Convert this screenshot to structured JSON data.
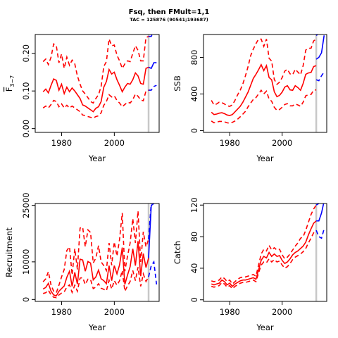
{
  "figure": {
    "title": "Fsq, then FMult=1,1",
    "subtitle": "TAC = 125876 (90541;193687)"
  },
  "colors": {
    "historic": "#ff0000",
    "projection": "#0000ff",
    "divider": "#c8c8c8"
  },
  "chart_data": [
    {
      "type": "line",
      "id": "fbar",
      "ylabel_main": "F",
      "ylabel_sub": "3−7",
      "xlabel": "Year",
      "xlim": [
        1970,
        2017
      ],
      "ylim": [
        -0.01,
        0.25
      ],
      "xticks": [
        "1980",
        "2000"
      ],
      "xtick_values": [
        1980,
        2000
      ],
      "yticks": [
        "0.00",
        "0.10",
        "0.20"
      ],
      "ytick_values": [
        0.0,
        0.1,
        0.2
      ],
      "divider_year": 2013,
      "x": [
        1973,
        1974,
        1975,
        1976,
        1977,
        1978,
        1979,
        1980,
        1981,
        1982,
        1983,
        1984,
        1985,
        1986,
        1987,
        1988,
        1989,
        1990,
        1991,
        1992,
        1993,
        1994,
        1995,
        1996,
        1997,
        1998,
        1999,
        2000,
        2001,
        2002,
        2003,
        2004,
        2005,
        2006,
        2007,
        2008,
        2009,
        2010,
        2011,
        2012,
        2013
      ],
      "median": [
        0.098,
        0.105,
        0.095,
        0.115,
        0.132,
        0.128,
        0.102,
        0.118,
        0.093,
        0.11,
        0.098,
        0.108,
        0.1,
        0.09,
        0.08,
        0.063,
        0.06,
        0.055,
        0.05,
        0.045,
        0.054,
        0.058,
        0.072,
        0.11,
        0.125,
        0.157,
        0.145,
        0.15,
        0.13,
        0.115,
        0.098,
        0.11,
        0.12,
        0.118,
        0.13,
        0.148,
        0.14,
        0.12,
        0.118,
        0.16,
        0.163
      ],
      "upper": [
        0.178,
        0.185,
        0.17,
        0.19,
        0.225,
        0.22,
        0.175,
        0.198,
        0.16,
        0.19,
        0.168,
        0.182,
        0.172,
        0.14,
        0.118,
        0.1,
        0.092,
        0.082,
        0.072,
        0.068,
        0.08,
        0.09,
        0.112,
        0.165,
        0.178,
        0.238,
        0.22,
        0.222,
        0.195,
        0.18,
        0.16,
        0.172,
        0.18,
        0.178,
        0.2,
        0.22,
        0.208,
        0.18,
        0.18,
        0.242,
        0.245
      ],
      "lower": [
        0.055,
        0.06,
        0.055,
        0.064,
        0.075,
        0.072,
        0.058,
        0.066,
        0.055,
        0.062,
        0.055,
        0.06,
        0.055,
        0.05,
        0.045,
        0.036,
        0.035,
        0.032,
        0.03,
        0.028,
        0.032,
        0.034,
        0.042,
        0.062,
        0.072,
        0.09,
        0.084,
        0.087,
        0.075,
        0.068,
        0.058,
        0.064,
        0.07,
        0.068,
        0.077,
        0.092,
        0.086,
        0.076,
        0.074,
        0.1,
        0.102
      ],
      "proj_x": [
        2013,
        2014,
        2015,
        2016
      ],
      "proj_median": [
        0.163,
        0.16,
        0.175,
        0.175
      ],
      "proj_upper": [
        0.245,
        0.245,
        0.26,
        0.26
      ],
      "proj_lower": [
        0.102,
        0.102,
        0.112,
        0.115
      ]
    },
    {
      "type": "line",
      "id": "ssb",
      "ylabel": "SSB",
      "xlabel": "Year",
      "xlim": [
        1970,
        2017
      ],
      "ylim": [
        -20,
        1050
      ],
      "xticks": [
        "1980",
        "2000"
      ],
      "xtick_values": [
        1980,
        2000
      ],
      "yticks": [
        "0",
        "400",
        "800"
      ],
      "ytick_values": [
        0,
        400,
        800
      ],
      "divider_year": 2013,
      "x": [
        1973,
        1974,
        1975,
        1976,
        1977,
        1978,
        1979,
        1980,
        1981,
        1982,
        1983,
        1984,
        1985,
        1986,
        1987,
        1988,
        1989,
        1990,
        1991,
        1992,
        1993,
        1994,
        1995,
        1996,
        1997,
        1998,
        1999,
        2000,
        2001,
        2002,
        2003,
        2004,
        2005,
        2006,
        2007,
        2008,
        2009,
        2010,
        2011,
        2012,
        2013
      ],
      "median": [
        200,
        175,
        180,
        190,
        195,
        185,
        170,
        165,
        175,
        205,
        235,
        265,
        310,
        365,
        420,
        495,
        570,
        615,
        665,
        720,
        655,
        710,
        580,
        555,
        425,
        370,
        385,
        420,
        475,
        490,
        445,
        440,
        490,
        470,
        440,
        515,
        615,
        630,
        635,
        700,
        710
      ],
      "upper": [
        330,
        280,
        290,
        310,
        305,
        290,
        270,
        265,
        280,
        330,
        390,
        440,
        510,
        600,
        700,
        820,
        890,
        950,
        1000,
        1000,
        920,
        1000,
        790,
        760,
        560,
        505,
        530,
        580,
        650,
        670,
        620,
        610,
        670,
        640,
        610,
        710,
        880,
        900,
        900,
        980,
        1000
      ],
      "lower": [
        105,
        85,
        90,
        100,
        100,
        95,
        85,
        80,
        90,
        105,
        125,
        150,
        180,
        210,
        260,
        300,
        340,
        360,
        400,
        440,
        400,
        430,
        345,
        320,
        255,
        220,
        230,
        255,
        285,
        295,
        270,
        270,
        290,
        280,
        265,
        310,
        380,
        390,
        395,
        440,
        445
      ],
      "proj_x": [
        2013,
        2014,
        2015,
        2016
      ],
      "proj_median": [
        780,
        800,
        850,
        1040
      ],
      "proj_upper": [
        1040,
        1060,
        1060,
        1060
      ],
      "proj_lower": [
        555,
        545,
        600,
        640
      ]
    },
    {
      "type": "line",
      "id": "recruitment",
      "ylabel": "Recruitment",
      "xlabel": "Year",
      "xlim": [
        1970,
        2017
      ],
      "ylim": [
        -500,
        25500
      ],
      "xticks": [
        "1980",
        "2000"
      ],
      "xtick_values": [
        1980,
        2000
      ],
      "yticks": [
        "0",
        "10000",
        "25000"
      ],
      "ytick_values": [
        0,
        10000,
        25000
      ],
      "divider_year": 2013,
      "x": [
        1973,
        1974,
        1975,
        1976,
        1977,
        1978,
        1979,
        1980,
        1981,
        1982,
        1983,
        1984,
        1985,
        1986,
        1987,
        1988,
        1989,
        1990,
        1991,
        1992,
        1993,
        1994,
        1995,
        1996,
        1997,
        1998,
        1999,
        2000,
        2001,
        2002,
        2003,
        2004,
        2005,
        2006,
        2007,
        2008,
        2009,
        2010,
        2011,
        2012,
        2013
      ],
      "median": [
        2800,
        3200,
        4300,
        2200,
        1200,
        1000,
        2200,
        2900,
        3600,
        5900,
        7500,
        3500,
        7200,
        4100,
        10700,
        10500,
        7500,
        10100,
        9700,
        5200,
        6000,
        7800,
        5500,
        5000,
        4200,
        9000,
        5000,
        9000,
        6800,
        9200,
        13800,
        4000,
        6500,
        8700,
        13500,
        9000,
        15500,
        6200,
        12200,
        8500,
        11000
      ],
      "upper": [
        4700,
        5500,
        7400,
        3800,
        2200,
        1800,
        3800,
        6000,
        8000,
        13000,
        14000,
        6500,
        13500,
        8000,
        19000,
        19200,
        14000,
        18500,
        17800,
        9700,
        11000,
        14300,
        10000,
        9000,
        7700,
        15000,
        9100,
        15300,
        11500,
        16000,
        23000,
        7500,
        11500,
        15000,
        21500,
        15000,
        23500,
        10000,
        18000,
        14000,
        16000
      ],
      "lower": [
        1600,
        1800,
        2500,
        1200,
        600,
        500,
        1200,
        1700,
        2000,
        3300,
        3900,
        1900,
        3800,
        2200,
        5700,
        5800,
        4000,
        5400,
        5300,
        2900,
        3300,
        4200,
        3000,
        2700,
        2300,
        5100,
        2800,
        5000,
        3800,
        5000,
        7700,
        2200,
        3600,
        4800,
        7700,
        5000,
        8600,
        3500,
        6800,
        4800,
        6000
      ],
      "proj_x": [
        2013,
        2014,
        2015,
        2016
      ],
      "proj_median": [
        11000,
        25000,
        25500,
        25800
      ],
      "proj_upper": [
        16000,
        25800,
        26000,
        26000
      ],
      "proj_lower": [
        6000,
        9000,
        10000,
        4000
      ]
    },
    {
      "type": "line",
      "id": "catch",
      "ylabel": "Catch",
      "xlabel": "Year",
      "xlim": [
        1970,
        2017
      ],
      "ylim": [
        -2,
        122
      ],
      "xticks": [
        "1980",
        "2000"
      ],
      "xtick_values": [
        1980,
        2000
      ],
      "yticks": [
        "0",
        "40",
        "80",
        "120"
      ],
      "ytick_values": [
        0,
        40,
        80,
        120
      ],
      "divider_year": 2013,
      "x": [
        1973,
        1974,
        1975,
        1976,
        1977,
        1978,
        1979,
        1980,
        1981,
        1982,
        1983,
        1984,
        1985,
        1986,
        1987,
        1988,
        1989,
        1990,
        1991,
        1992,
        1993,
        1994,
        1995,
        1996,
        1997,
        1998,
        1999,
        2000,
        2001,
        2002,
        2003,
        2004,
        2005,
        2006,
        2007,
        2008,
        2009,
        2010,
        2011,
        2012,
        2013
      ],
      "median": [
        20,
        19,
        20,
        21,
        25,
        23,
        19,
        21,
        17,
        20,
        22,
        24,
        25,
        25,
        26,
        27,
        28,
        26,
        38,
        50,
        55,
        53,
        60,
        55,
        58,
        55,
        56,
        50,
        46,
        48,
        52,
        57,
        60,
        62,
        65,
        68,
        73,
        82,
        90,
        97,
        100
      ],
      "upper": [
        24,
        23,
        24,
        25,
        29,
        27,
        23,
        25,
        20,
        23,
        26,
        28,
        29,
        29,
        30,
        31,
        32,
        30,
        44,
        58,
        64,
        62,
        69,
        63,
        66,
        63,
        64,
        57,
        52,
        54,
        58,
        63,
        68,
        72,
        78,
        80,
        88,
        98,
        108,
        115,
        120
      ],
      "lower": [
        17,
        16,
        17,
        18,
        22,
        20,
        16,
        18,
        14,
        17,
        19,
        21,
        22,
        22,
        23,
        24,
        25,
        23,
        34,
        44,
        48,
        47,
        52,
        48,
        51,
        48,
        49,
        44,
        40,
        42,
        46,
        51,
        54,
        56,
        58,
        61,
        65,
        72,
        78,
        85,
        88
      ],
      "proj_x": [
        2013,
        2014,
        2015,
        2016
      ],
      "proj_median": [
        100,
        100,
        110,
        125
      ],
      "proj_upper": [
        120,
        122,
        125,
        125
      ],
      "proj_lower": [
        88,
        80,
        78,
        90
      ]
    }
  ]
}
